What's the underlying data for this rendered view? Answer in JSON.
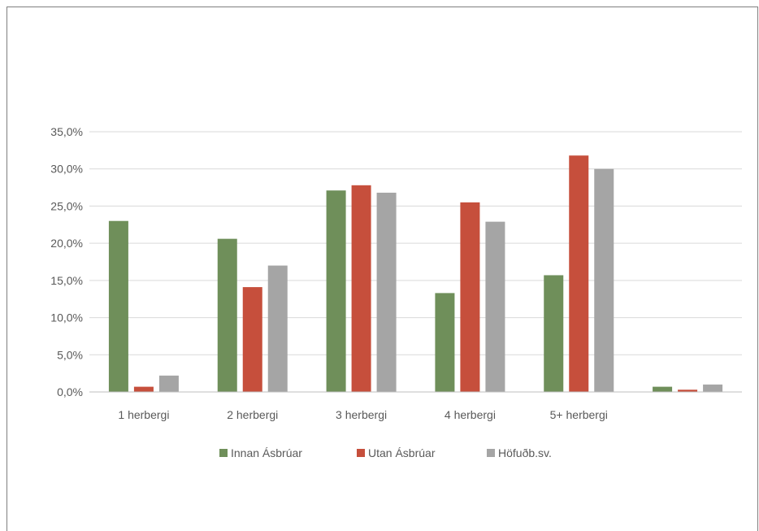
{
  "chart_data": {
    "type": "bar",
    "categories": [
      "1 herbergi",
      "2 herbergi",
      "3 herbergi",
      "4 herbergi",
      "5+ herbergi",
      ""
    ],
    "series": [
      {
        "name": "Innan Ásbrúar",
        "color": "#6f8f5a",
        "values": [
          23.0,
          20.6,
          27.1,
          13.3,
          15.7,
          0.7
        ]
      },
      {
        "name": "Utan Ásbrúar",
        "color": "#c64f3c",
        "values": [
          0.7,
          14.1,
          27.8,
          25.5,
          31.8,
          0.3
        ]
      },
      {
        "name": "Höfuðb.sv.",
        "color": "#a5a5a5",
        "values": [
          2.2,
          17.0,
          26.8,
          22.9,
          30.0,
          1.0
        ]
      }
    ],
    "title": "",
    "xlabel": "",
    "ylabel": "",
    "ylim": [
      0,
      35
    ],
    "yticks": [
      "0,0%",
      "5,0%",
      "10,0%",
      "15,0%",
      "20,0%",
      "25,0%",
      "30,0%",
      "35,0%"
    ],
    "grid": true,
    "legend": "bottom"
  }
}
